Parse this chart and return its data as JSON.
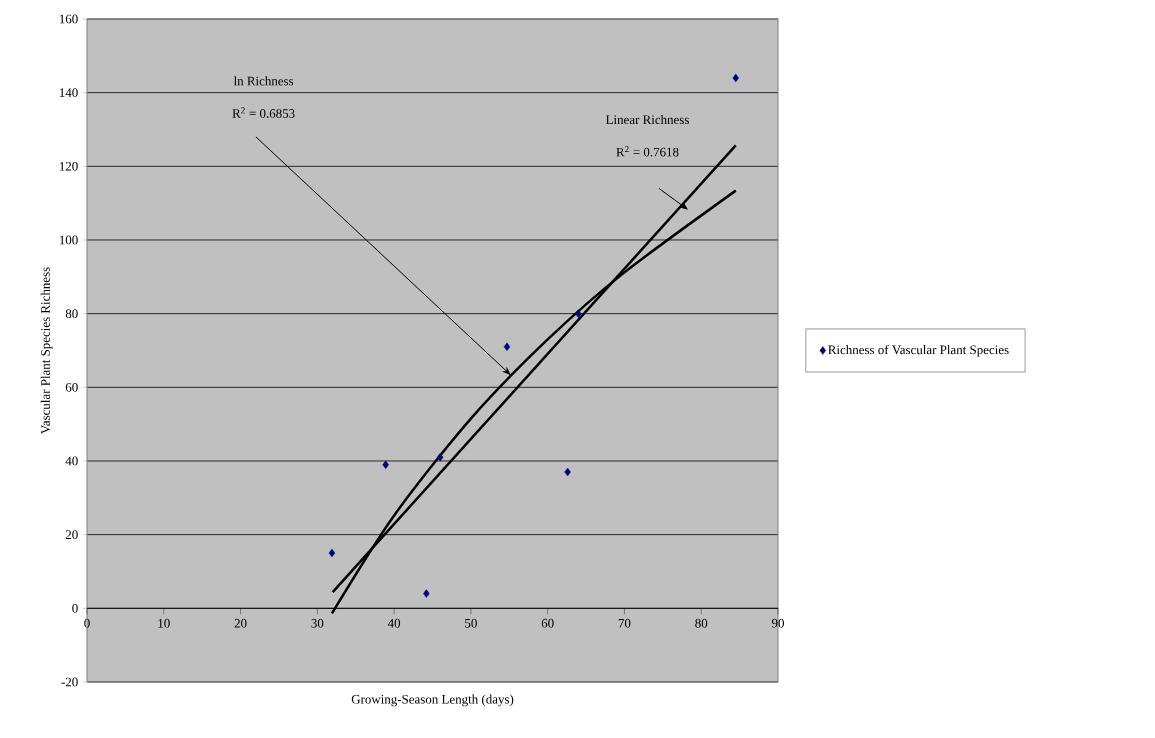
{
  "chart_data": {
    "type": "scatter",
    "xlabel": "Growing-Season Length (days)",
    "ylabel": "Vascular Plant Species Richness",
    "xlim": [
      0,
      90
    ],
    "xticks": [
      0,
      10,
      20,
      30,
      40,
      50,
      60,
      70,
      80,
      90
    ],
    "ylim": [
      -20,
      160
    ],
    "yticks": [
      -20,
      0,
      20,
      40,
      60,
      80,
      100,
      120,
      140,
      160
    ],
    "grid": "y",
    "legend": "right",
    "marker": "diamond",
    "series": [
      {
        "name": "Richness of Vascular Plant Species",
        "color": "#000080",
        "x": [
          31.9,
          38.9,
          44.2,
          46.0,
          54.7,
          62.6,
          64.0,
          84.5
        ],
        "values": [
          15,
          39,
          4,
          41,
          71,
          37,
          80,
          144
        ]
      },
      {
        "type": "line",
        "marker": "none",
        "color": "#000000",
        "x": [
          32,
          84.5
        ],
        "values": [
          4.4,
          125.7
        ]
      },
      {
        "type": "line",
        "marker": "none",
        "color": "#000000",
        "x": [
          31.9,
          40,
          50,
          60,
          70,
          84.5
        ],
        "values": [
          -1.4,
          25.2,
          51.5,
          73.0,
          91.2,
          113.4
        ]
      }
    ],
    "annotations": [
      "ln Richness",
      "R$^{2}$ = 0.6853",
      "Linear Richness",
      "R$^{2}$ = 0.7618"
    ]
  }
}
